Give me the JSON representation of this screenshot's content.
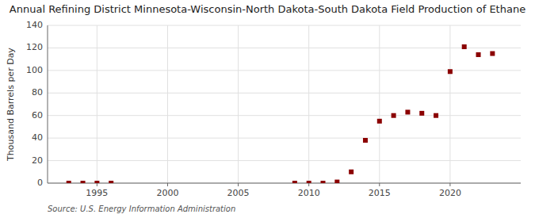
{
  "chart_data": {
    "type": "scatter",
    "title": "Annual Refining District Minnesota-Wisconsin-North Dakota-South Dakota Field Production of Ethane",
    "ylabel": "Thousand Barrels per Day",
    "annotations": [
      "Source: U.S. Energy Information Administration"
    ],
    "x": [
      1993,
      1994,
      1995,
      1996,
      2009,
      2010,
      2011,
      2012,
      2013,
      2014,
      2015,
      2016,
      2017,
      2018,
      2019,
      2020,
      2021,
      2022,
      2023
    ],
    "values": [
      0,
      0,
      0,
      0,
      0,
      0,
      0,
      1,
      10,
      38,
      55,
      60,
      63,
      62,
      60,
      99,
      121,
      114,
      115
    ],
    "color": "#8b0000",
    "marker": "square",
    "xlim": [
      1991.5,
      2025
    ],
    "ylim": [
      0,
      140
    ],
    "xticks": [
      1995,
      2000,
      2005,
      2010,
      2015,
      2020
    ],
    "yticks": [
      0,
      20,
      40,
      60,
      80,
      100,
      120,
      140
    ],
    "grid": true
  }
}
